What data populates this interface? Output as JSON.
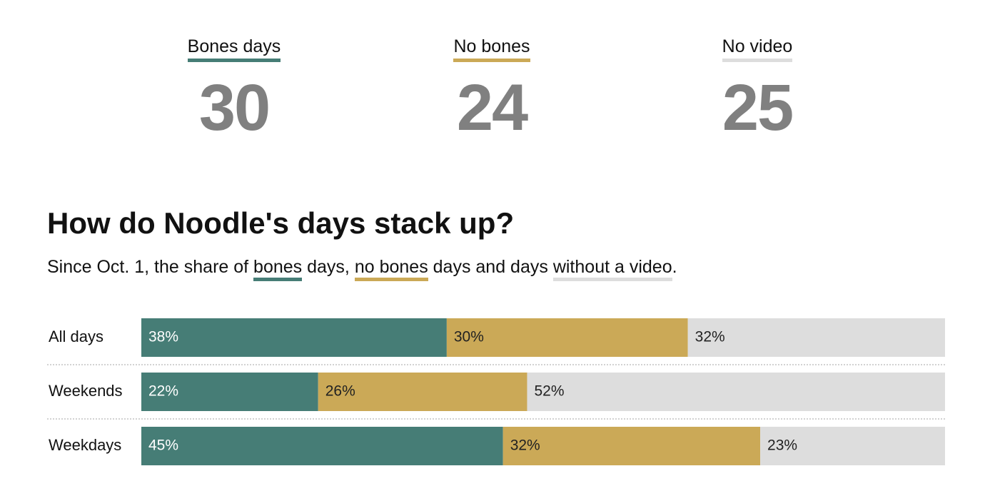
{
  "colors": {
    "bones": "#467d76",
    "no_bones": "#cba957",
    "no_video": "#dddddd",
    "stat_number": "#808080"
  },
  "stats": [
    {
      "label": "Bones days",
      "value": "30",
      "color": "#467d76"
    },
    {
      "label": "No bones",
      "value": "24",
      "color": "#cba957"
    },
    {
      "label": "No video",
      "value": "25",
      "color": "#dddddd"
    }
  ],
  "title": "How do Noodle's days stack up?",
  "subtitle": {
    "part1": "Since Oct. 1, the share of ",
    "bones": "bones",
    "part2": " days, ",
    "no_bones": "no bones",
    "part3": " days and days ",
    "no_video": "without a video",
    "part4": "."
  },
  "chart_data": {
    "type": "bar",
    "orientation": "horizontal",
    "stacked": true,
    "title": "How do Noodle's days stack up?",
    "subtitle": "Since Oct. 1, the share of bones days, no bones days and days without a video.",
    "categories": [
      "All days",
      "Weekends",
      "Weekdays"
    ],
    "series": [
      {
        "name": "bones",
        "color": "#467d76",
        "values": [
          38,
          22,
          45
        ],
        "labels": [
          "38%",
          "22%",
          "45%"
        ],
        "label_color": "#ffffff"
      },
      {
        "name": "no bones",
        "color": "#cba957",
        "values": [
          30,
          26,
          32
        ],
        "labels": [
          "30%",
          "26%",
          "32%"
        ],
        "label_color": "#222222"
      },
      {
        "name": "without a video",
        "color": "#dddddd",
        "values": [
          32,
          52,
          23
        ],
        "labels": [
          "32%",
          "52%",
          "23%"
        ],
        "label_color": "#222222"
      }
    ],
    "xlim": [
      0,
      100
    ],
    "unit": "%",
    "grid": false,
    "legend": "inline in subtitle"
  }
}
